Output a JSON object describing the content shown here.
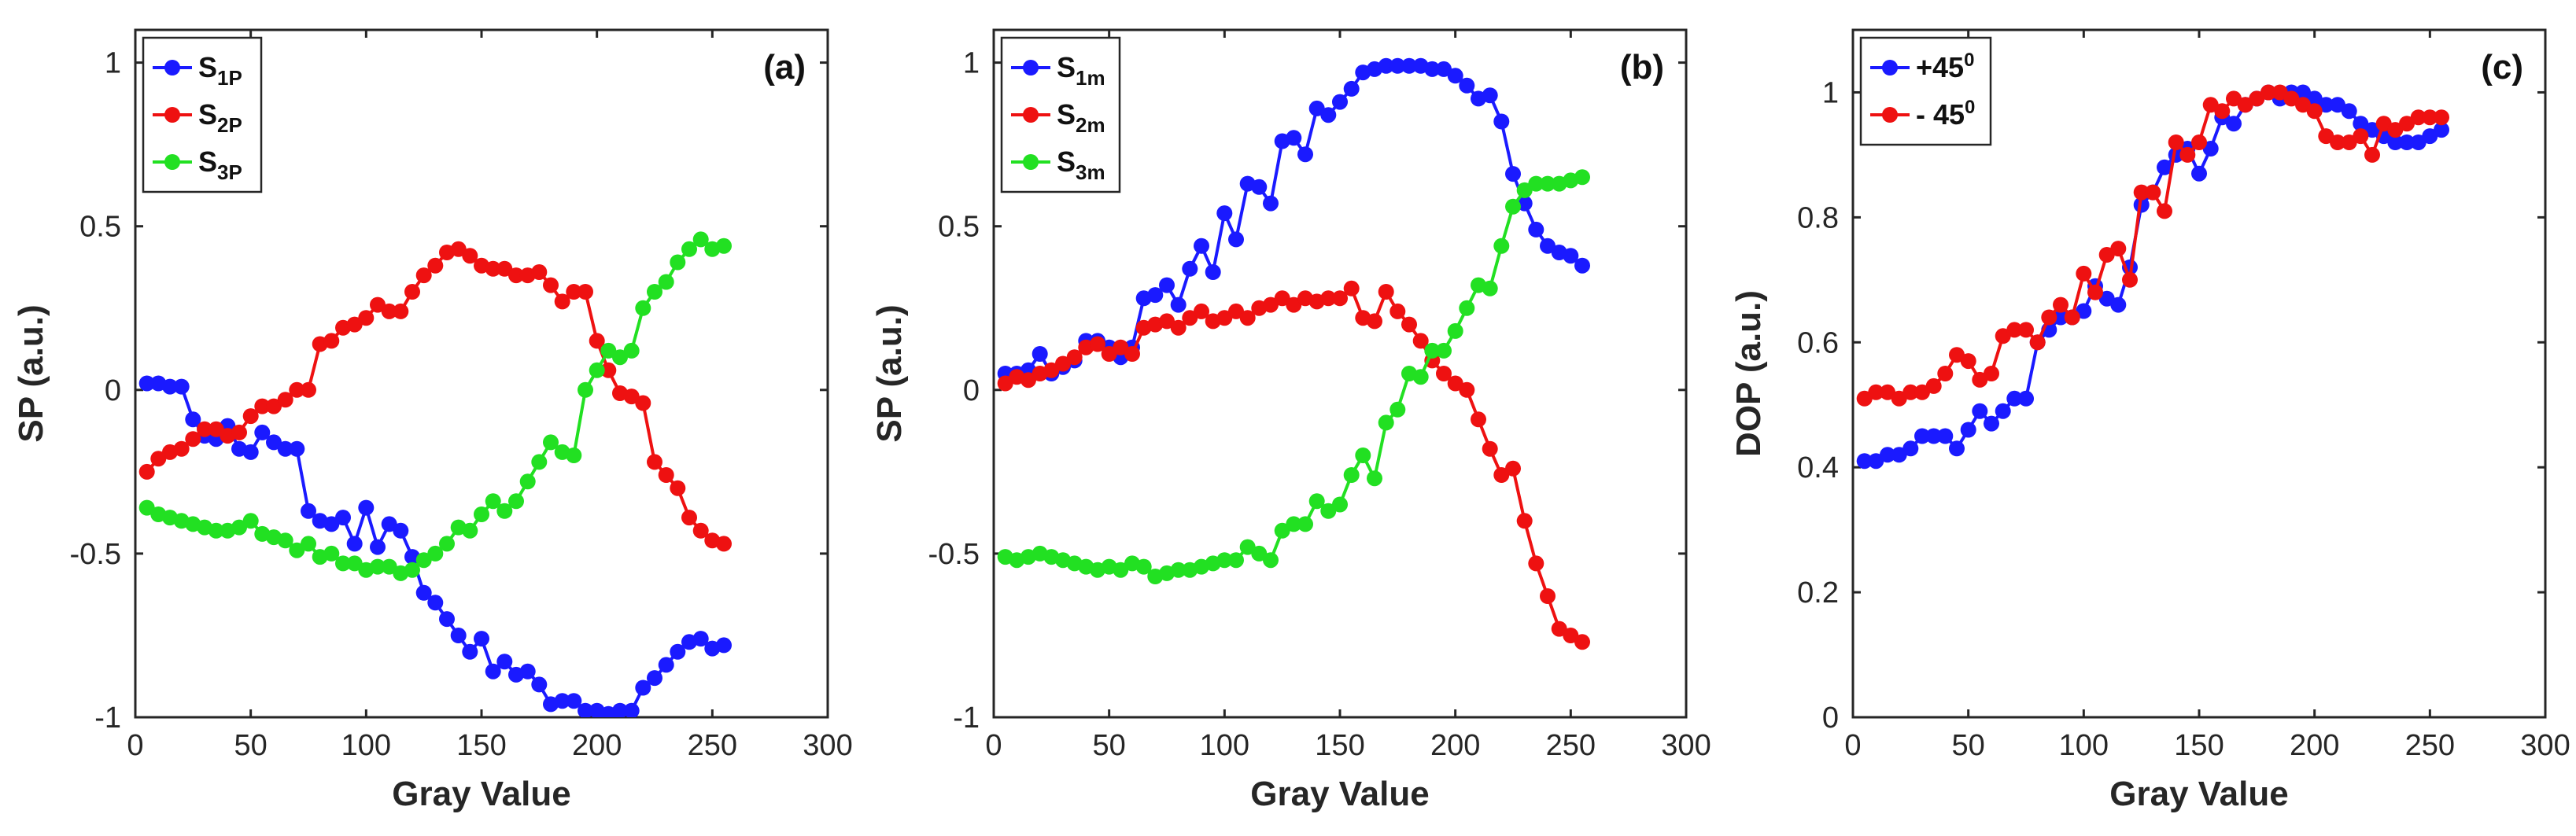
{
  "chart_data": [
    {
      "type": "line",
      "panel_label": "(a)",
      "xlabel": "Gray Value",
      "ylabel": "SP (a.u.)",
      "xlim": [
        0,
        300
      ],
      "ylim": [
        -1,
        1.1
      ],
      "xticks": [
        0,
        50,
        100,
        150,
        200,
        250,
        300
      ],
      "xtick_labels": [
        "0",
        "50",
        "100",
        "150",
        "200",
        "250",
        "300"
      ],
      "yticks": [
        -1,
        -0.5,
        0,
        0.5,
        1
      ],
      "ytick_labels": [
        "-1",
        "-0.5",
        "0",
        "0.5",
        "1"
      ],
      "legend_position": "top-left",
      "series": [
        {
          "name": "S1P",
          "label_main": "S",
          "label_sub": "1P",
          "color": "#1a1aff",
          "x": [
            5,
            10,
            15,
            20,
            25,
            30,
            35,
            40,
            45,
            50,
            55,
            60,
            65,
            70,
            75,
            80,
            85,
            90,
            95,
            100,
            105,
            110,
            115,
            120,
            125,
            130,
            135,
            140,
            145,
            150,
            155,
            160,
            165,
            170,
            175,
            180,
            185,
            190,
            195,
            200,
            205,
            210,
            215,
            220,
            225,
            230,
            235,
            240,
            245,
            250,
            255
          ],
          "y": [
            0.02,
            0.02,
            0.01,
            0.01,
            -0.09,
            -0.14,
            -0.15,
            -0.11,
            -0.18,
            -0.19,
            -0.13,
            -0.16,
            -0.18,
            -0.18,
            -0.37,
            -0.4,
            -0.41,
            -0.39,
            -0.47,
            -0.36,
            -0.48,
            -0.41,
            -0.43,
            -0.51,
            -0.62,
            -0.65,
            -0.7,
            -0.75,
            -0.8,
            -0.76,
            -0.86,
            -0.83,
            -0.87,
            -0.86,
            -0.9,
            -0.96,
            -0.95,
            -0.95,
            -0.98,
            -0.98,
            -0.99,
            -0.98,
            -0.98,
            -0.91,
            -0.88,
            -0.84,
            -0.8,
            -0.77,
            -0.76,
            -0.79,
            -0.78
          ]
        },
        {
          "name": "S2P",
          "label_main": "S",
          "label_sub": "2P",
          "color": "#ee1111",
          "x": [
            5,
            10,
            15,
            20,
            25,
            30,
            35,
            40,
            45,
            50,
            55,
            60,
            65,
            70,
            75,
            80,
            85,
            90,
            95,
            100,
            105,
            110,
            115,
            120,
            125,
            130,
            135,
            140,
            145,
            150,
            155,
            160,
            165,
            170,
            175,
            180,
            185,
            190,
            195,
            200,
            205,
            210,
            215,
            220,
            225,
            230,
            235,
            240,
            245,
            250,
            255
          ],
          "y": [
            -0.25,
            -0.21,
            -0.19,
            -0.18,
            -0.15,
            -0.12,
            -0.12,
            -0.14,
            -0.13,
            -0.08,
            -0.05,
            -0.05,
            -0.03,
            0.0,
            0.0,
            0.14,
            0.15,
            0.19,
            0.2,
            0.22,
            0.26,
            0.24,
            0.24,
            0.3,
            0.35,
            0.38,
            0.42,
            0.43,
            0.41,
            0.38,
            0.37,
            0.37,
            0.35,
            0.35,
            0.36,
            0.32,
            0.27,
            0.3,
            0.3,
            0.15,
            0.06,
            -0.01,
            -0.02,
            -0.04,
            -0.22,
            -0.26,
            -0.3,
            -0.39,
            -0.43,
            -0.46,
            -0.47
          ]
        },
        {
          "name": "S3P",
          "label_main": "S",
          "label_sub": "3P",
          "color": "#22e022",
          "x": [
            5,
            10,
            15,
            20,
            25,
            30,
            35,
            40,
            45,
            50,
            55,
            60,
            65,
            70,
            75,
            80,
            85,
            90,
            95,
            100,
            105,
            110,
            115,
            120,
            125,
            130,
            135,
            140,
            145,
            150,
            155,
            160,
            165,
            170,
            175,
            180,
            185,
            190,
            195,
            200,
            205,
            210,
            215,
            220,
            225,
            230,
            235,
            240,
            245,
            250,
            255
          ],
          "y": [
            -0.36,
            -0.38,
            -0.39,
            -0.4,
            -0.41,
            -0.42,
            -0.43,
            -0.43,
            -0.42,
            -0.4,
            -0.44,
            -0.45,
            -0.46,
            -0.49,
            -0.47,
            -0.51,
            -0.5,
            -0.53,
            -0.53,
            -0.55,
            -0.54,
            -0.54,
            -0.56,
            -0.55,
            -0.52,
            -0.5,
            -0.47,
            -0.42,
            -0.43,
            -0.38,
            -0.34,
            -0.37,
            -0.34,
            -0.28,
            -0.22,
            -0.16,
            -0.19,
            -0.2,
            0.0,
            0.06,
            0.12,
            0.1,
            0.12,
            0.25,
            0.3,
            0.33,
            0.39,
            0.43,
            0.46,
            0.43,
            0.44
          ]
        }
      ]
    },
    {
      "type": "line",
      "panel_label": "(b)",
      "xlabel": "Gray Value",
      "ylabel": "SP (a.u.)",
      "xlim": [
        0,
        300
      ],
      "ylim": [
        -1,
        1.1
      ],
      "xticks": [
        0,
        50,
        100,
        150,
        200,
        250,
        300
      ],
      "xtick_labels": [
        "0",
        "50",
        "100",
        "150",
        "200",
        "250",
        "300"
      ],
      "yticks": [
        -1,
        -0.5,
        0,
        0.5,
        1
      ],
      "ytick_labels": [
        "-1",
        "-0.5",
        "0",
        "0.5",
        "1"
      ],
      "legend_position": "top-left",
      "series": [
        {
          "name": "S1m",
          "label_main": "S",
          "label_sub": "1m",
          "color": "#1a1aff",
          "x": [
            5,
            10,
            15,
            20,
            25,
            30,
            35,
            40,
            45,
            50,
            55,
            60,
            65,
            70,
            75,
            80,
            85,
            90,
            95,
            100,
            105,
            110,
            115,
            120,
            125,
            130,
            135,
            140,
            145,
            150,
            155,
            160,
            165,
            170,
            175,
            180,
            185,
            190,
            195,
            200,
            205,
            210,
            215,
            220,
            225,
            230,
            235,
            240,
            245,
            250,
            255
          ],
          "y": [
            0.05,
            0.05,
            0.06,
            0.11,
            0.05,
            0.07,
            0.09,
            0.15,
            0.15,
            0.13,
            0.1,
            0.13,
            0.28,
            0.29,
            0.32,
            0.26,
            0.37,
            0.44,
            0.36,
            0.54,
            0.46,
            0.63,
            0.62,
            0.57,
            0.76,
            0.77,
            0.72,
            0.86,
            0.84,
            0.88,
            0.92,
            0.97,
            0.98,
            0.99,
            0.99,
            0.99,
            0.99,
            0.98,
            0.98,
            0.96,
            0.93,
            0.89,
            0.9,
            0.82,
            0.66,
            0.57,
            0.49,
            0.44,
            0.42,
            0.41,
            0.38
          ]
        },
        {
          "name": "S2m",
          "label_main": "S",
          "label_sub": "2m",
          "color": "#ee1111",
          "x": [
            5,
            10,
            15,
            20,
            25,
            30,
            35,
            40,
            45,
            50,
            55,
            60,
            65,
            70,
            75,
            80,
            85,
            90,
            95,
            100,
            105,
            110,
            115,
            120,
            125,
            130,
            135,
            140,
            145,
            150,
            155,
            160,
            165,
            170,
            175,
            180,
            185,
            190,
            195,
            200,
            205,
            210,
            215,
            220,
            225,
            230,
            235,
            240,
            245,
            250,
            255
          ],
          "y": [
            0.02,
            0.04,
            0.03,
            0.05,
            0.06,
            0.08,
            0.1,
            0.13,
            0.14,
            0.11,
            0.13,
            0.11,
            0.19,
            0.2,
            0.21,
            0.19,
            0.22,
            0.24,
            0.21,
            0.22,
            0.24,
            0.22,
            0.25,
            0.26,
            0.28,
            0.26,
            0.28,
            0.27,
            0.28,
            0.28,
            0.31,
            0.22,
            0.21,
            0.3,
            0.24,
            0.2,
            0.15,
            0.09,
            0.05,
            0.02,
            0.0,
            -0.09,
            -0.18,
            -0.26,
            -0.24,
            -0.4,
            -0.53,
            -0.63,
            -0.73,
            -0.75,
            -0.77
          ]
        },
        {
          "name": "S3m",
          "label_main": "S",
          "label_sub": "3m",
          "color": "#22e022",
          "x": [
            5,
            10,
            15,
            20,
            25,
            30,
            35,
            40,
            45,
            50,
            55,
            60,
            65,
            70,
            75,
            80,
            85,
            90,
            95,
            100,
            105,
            110,
            115,
            120,
            125,
            130,
            135,
            140,
            145,
            150,
            155,
            160,
            165,
            170,
            175,
            180,
            185,
            190,
            195,
            200,
            205,
            210,
            215,
            220,
            225,
            230,
            235,
            240,
            245,
            250,
            255
          ],
          "y": [
            -0.51,
            -0.52,
            -0.51,
            -0.5,
            -0.51,
            -0.52,
            -0.53,
            -0.54,
            -0.55,
            -0.54,
            -0.55,
            -0.53,
            -0.54,
            -0.57,
            -0.56,
            -0.55,
            -0.55,
            -0.54,
            -0.53,
            -0.52,
            -0.52,
            -0.48,
            -0.5,
            -0.52,
            -0.43,
            -0.41,
            -0.41,
            -0.34,
            -0.37,
            -0.35,
            -0.26,
            -0.2,
            -0.27,
            -0.1,
            -0.06,
            0.05,
            0.04,
            0.12,
            0.12,
            0.18,
            0.25,
            0.32,
            0.31,
            0.44,
            0.56,
            0.61,
            0.63,
            0.63,
            0.63,
            0.64,
            0.65
          ]
        }
      ]
    },
    {
      "type": "line",
      "panel_label": "(c)",
      "xlabel": "Gray Value",
      "ylabel": "DOP (a.u.)",
      "xlim": [
        0,
        300
      ],
      "ylim": [
        0,
        1.1
      ],
      "xticks": [
        0,
        50,
        100,
        150,
        200,
        250,
        300
      ],
      "xtick_labels": [
        "0",
        "50",
        "100",
        "150",
        "200",
        "250",
        "300"
      ],
      "yticks": [
        0,
        0.2,
        0.4,
        0.6,
        0.8,
        1
      ],
      "ytick_labels": [
        "0",
        "0.2",
        "0.4",
        "0.6",
        "0.8",
        "1"
      ],
      "legend_position": "top-left",
      "series": [
        {
          "name": "+45⁰",
          "label_main": "+45",
          "label_sup": "0",
          "color": "#1a1aff",
          "x": [
            5,
            10,
            15,
            20,
            25,
            30,
            35,
            40,
            45,
            50,
            55,
            60,
            65,
            70,
            75,
            80,
            85,
            90,
            95,
            100,
            105,
            110,
            115,
            120,
            125,
            130,
            135,
            140,
            145,
            150,
            155,
            160,
            165,
            170,
            175,
            180,
            185,
            190,
            195,
            200,
            205,
            210,
            215,
            220,
            225,
            230,
            235,
            240,
            245,
            250,
            255
          ],
          "y": [
            0.41,
            0.41,
            0.42,
            0.42,
            0.43,
            0.45,
            0.45,
            0.45,
            0.43,
            0.46,
            0.49,
            0.47,
            0.49,
            0.51,
            0.51,
            0.6,
            0.62,
            0.64,
            0.64,
            0.65,
            0.69,
            0.67,
            0.66,
            0.72,
            0.82,
            0.84,
            0.88,
            0.9,
            0.91,
            0.87,
            0.91,
            0.96,
            0.95,
            0.98,
            0.99,
            1.0,
            0.99,
            1.0,
            1.0,
            0.99,
            0.98,
            0.98,
            0.97,
            0.95,
            0.94,
            0.93,
            0.92,
            0.92,
            0.92,
            0.93,
            0.94
          ]
        },
        {
          "name": "- 45⁰",
          "label_main": "- 45",
          "label_sup": "0",
          "color": "#ee1111",
          "x": [
            5,
            10,
            15,
            20,
            25,
            30,
            35,
            40,
            45,
            50,
            55,
            60,
            65,
            70,
            75,
            80,
            85,
            90,
            95,
            100,
            105,
            110,
            115,
            120,
            125,
            130,
            135,
            140,
            145,
            150,
            155,
            160,
            165,
            170,
            175,
            180,
            185,
            190,
            195,
            200,
            205,
            210,
            215,
            220,
            225,
            230,
            235,
            240,
            245,
            250,
            255
          ],
          "y": [
            0.51,
            0.52,
            0.52,
            0.51,
            0.52,
            0.52,
            0.53,
            0.55,
            0.58,
            0.57,
            0.54,
            0.55,
            0.61,
            0.62,
            0.62,
            0.6,
            0.64,
            0.66,
            0.64,
            0.71,
            0.68,
            0.74,
            0.75,
            0.7,
            0.84,
            0.84,
            0.81,
            0.92,
            0.9,
            0.92,
            0.98,
            0.97,
            0.99,
            0.98,
            0.99,
            1.0,
            1.0,
            0.99,
            0.98,
            0.97,
            0.93,
            0.92,
            0.92,
            0.93,
            0.9,
            0.95,
            0.94,
            0.95,
            0.96,
            0.96,
            0.96
          ]
        }
      ]
    }
  ]
}
